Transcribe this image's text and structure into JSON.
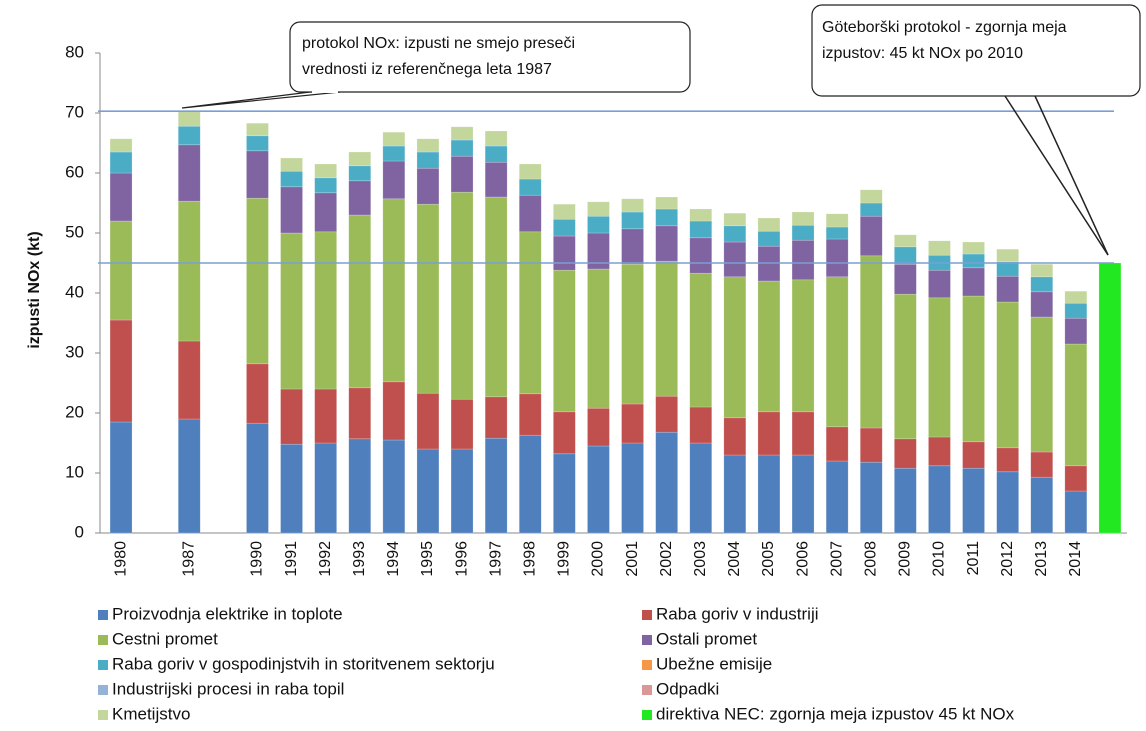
{
  "chart_data": {
    "type": "stacked_bar",
    "y_label": "izpusti NOx (kt)",
    "categories": [
      "1980",
      null,
      "1987",
      null,
      "1990",
      "1991",
      "1992",
      "1993",
      "1994",
      "1995",
      "1996",
      "1997",
      "1998",
      "1999",
      "2000",
      "2001",
      "2002",
      "2003",
      "2004",
      "2005",
      "2006",
      "2007",
      "2008",
      "2009",
      "2010",
      "2011",
      "2012",
      "2013",
      "2014",
      null
    ],
    "ylim": [
      0,
      80
    ],
    "yticks": [
      0,
      10,
      20,
      30,
      40,
      50,
      60,
      70,
      80
    ],
    "reference_lines": [
      70.3,
      45
    ],
    "annotations": [
      [
        "protokol NOx: izpusti ne smejo preseči",
        "vrednosti iz referenčnega leta 1987"
      ],
      [
        "Göteborški protokol - zgornja meja",
        "izpustov: 45 kt NOx po 2010"
      ]
    ],
    "series": [
      {
        "name": "Proizvodnja elektrike in toplote",
        "color": "#4f7fbd",
        "values": [
          18.5,
          null,
          19,
          null,
          18.3,
          14.8,
          15,
          15.7,
          15.5,
          14,
          14,
          15.8,
          16.3,
          13.2,
          14.5,
          15,
          16.8,
          15,
          13,
          13,
          13,
          12,
          11.8,
          10.8,
          11.2,
          10.8,
          10.2,
          9.3,
          7,
          null
        ]
      },
      {
        "name": "Raba goriv v industriji",
        "color": "#c0504d",
        "values": [
          17,
          null,
          13,
          null,
          9.9,
          9.2,
          9,
          8.5,
          9.7,
          9.3,
          8.3,
          6.9,
          6.9,
          7,
          6.3,
          6.5,
          6,
          6,
          6.2,
          7.2,
          7.2,
          5.7,
          5.7,
          4.9,
          4.8,
          4.4,
          4,
          4.2,
          4.2,
          null
        ]
      },
      {
        "name": "Cestni promet",
        "color": "#9bbb59",
        "values": [
          16.5,
          null,
          23.3,
          null,
          27.6,
          26,
          26.2,
          28.8,
          30.5,
          31.5,
          34.5,
          33.3,
          27,
          23.6,
          23.2,
          23.3,
          22.5,
          22.3,
          23.5,
          21.8,
          22,
          25,
          28.7,
          24.1,
          23.2,
          24.3,
          24.3,
          22.5,
          20.3,
          null
        ]
      },
      {
        "name": "Ostali promet",
        "color": "#8064a2",
        "values": [
          8,
          null,
          9.4,
          null,
          7.9,
          7.7,
          6.5,
          5.7,
          6.3,
          6,
          6,
          5.8,
          6.1,
          5.7,
          6,
          5.9,
          5.9,
          5.9,
          5.8,
          5.8,
          6.6,
          6.3,
          6.6,
          5,
          4.6,
          4.7,
          4.3,
          4.2,
          4.3,
          null
        ]
      },
      {
        "name": "Raba goriv v gospodinjstvih in storitvenem sektorju",
        "color": "#4bacc6",
        "values": [
          3.5,
          null,
          3.1,
          null,
          2.5,
          2.6,
          2.5,
          2.5,
          2.5,
          2.7,
          2.7,
          2.7,
          2.7,
          2.8,
          2.8,
          2.8,
          2.8,
          2.8,
          2.7,
          2.5,
          2.5,
          2,
          2.2,
          2.9,
          2.5,
          2.3,
          2.4,
          2.5,
          2.5,
          null
        ]
      },
      {
        "name": "Ubežne emisije",
        "color": "#f79646",
        "values": [
          0,
          null,
          0,
          null,
          0,
          0,
          0,
          0,
          0,
          0,
          0,
          0,
          0,
          0,
          0,
          0,
          0,
          0,
          0,
          0,
          0,
          0,
          0,
          0,
          0,
          0,
          0,
          0,
          0,
          null
        ]
      },
      {
        "name": "Industrijski procesi in raba topil",
        "color": "#95b3d7",
        "values": [
          0,
          null,
          0,
          null,
          0,
          0,
          0,
          0,
          0,
          0,
          0,
          0,
          0,
          0,
          0,
          0,
          0,
          0,
          0,
          0,
          0,
          0,
          0,
          0,
          0,
          0,
          0,
          0,
          0,
          null
        ]
      },
      {
        "name": "Odpadki",
        "color": "#d99795",
        "values": [
          0,
          null,
          0,
          null,
          0,
          0,
          0,
          0,
          0,
          0,
          0,
          0,
          0,
          0,
          0,
          0,
          0,
          0,
          0,
          0,
          0,
          0,
          0,
          0,
          0,
          0,
          0,
          0,
          0,
          null
        ]
      },
      {
        "name": "Kmetijstvo",
        "color": "#c3d69b",
        "values": [
          2.2,
          null,
          2.5,
          null,
          2.1,
          2.2,
          2.3,
          2.3,
          2.3,
          2.2,
          2.2,
          2.5,
          2.5,
          2.5,
          2.4,
          2.2,
          2,
          2,
          2.1,
          2.2,
          2.2,
          2.2,
          2.2,
          2,
          2.4,
          2,
          2.1,
          2.1,
          2,
          null
        ]
      },
      {
        "name": "direktiva NEC: zgornja meja izpustov 45 kt NOx",
        "color": "#22e822",
        "values": [
          null,
          null,
          null,
          null,
          null,
          null,
          null,
          null,
          null,
          null,
          null,
          null,
          null,
          null,
          null,
          null,
          null,
          null,
          null,
          null,
          null,
          null,
          null,
          null,
          null,
          null,
          null,
          null,
          null,
          45
        ]
      }
    ]
  }
}
